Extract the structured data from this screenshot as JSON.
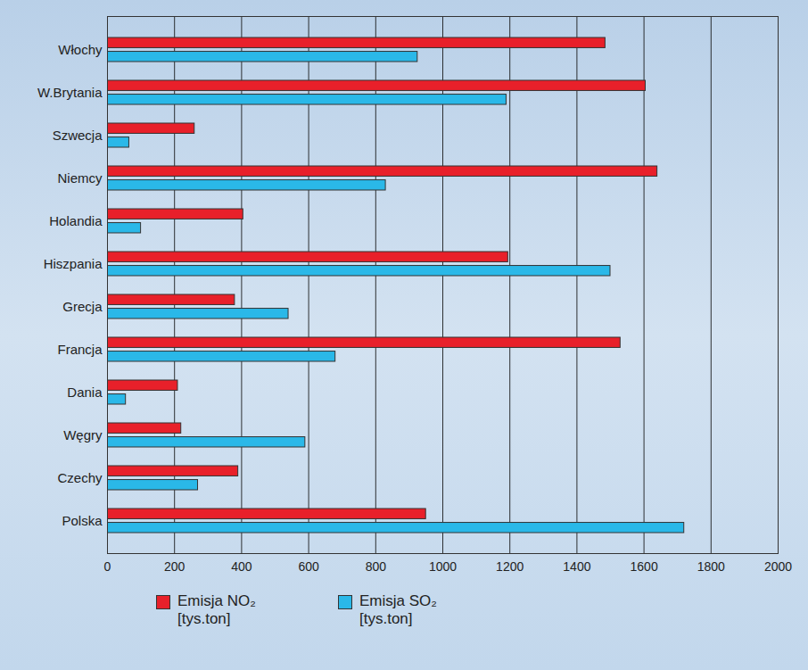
{
  "chart_data": {
    "type": "bar",
    "orientation": "horizontal",
    "categories": [
      "Włochy",
      "W.Brytania",
      "Szwecja",
      "Niemcy",
      "Holandia",
      "Hiszpania",
      "Grecja",
      "Francja",
      "Dania",
      "Węgry",
      "Czechy",
      "Polska"
    ],
    "series": [
      {
        "name": "Emisja NO₂ [tys.ton]",
        "color": "#e8202a",
        "values": [
          1485,
          1605,
          260,
          1640,
          405,
          1195,
          380,
          1530,
          210,
          220,
          390,
          950
        ]
      },
      {
        "name": "Emisja SO₂ [tys.ton]",
        "color": "#2ab8e8",
        "values": [
          925,
          1190,
          65,
          830,
          100,
          1500,
          540,
          680,
          55,
          590,
          270,
          1720
        ]
      }
    ],
    "xlim": [
      0,
      2000
    ],
    "xticks": [
      0,
      200,
      400,
      600,
      800,
      1000,
      1200,
      1400,
      1600,
      1800,
      2000
    ],
    "grid": true,
    "legend": "bottom"
  }
}
